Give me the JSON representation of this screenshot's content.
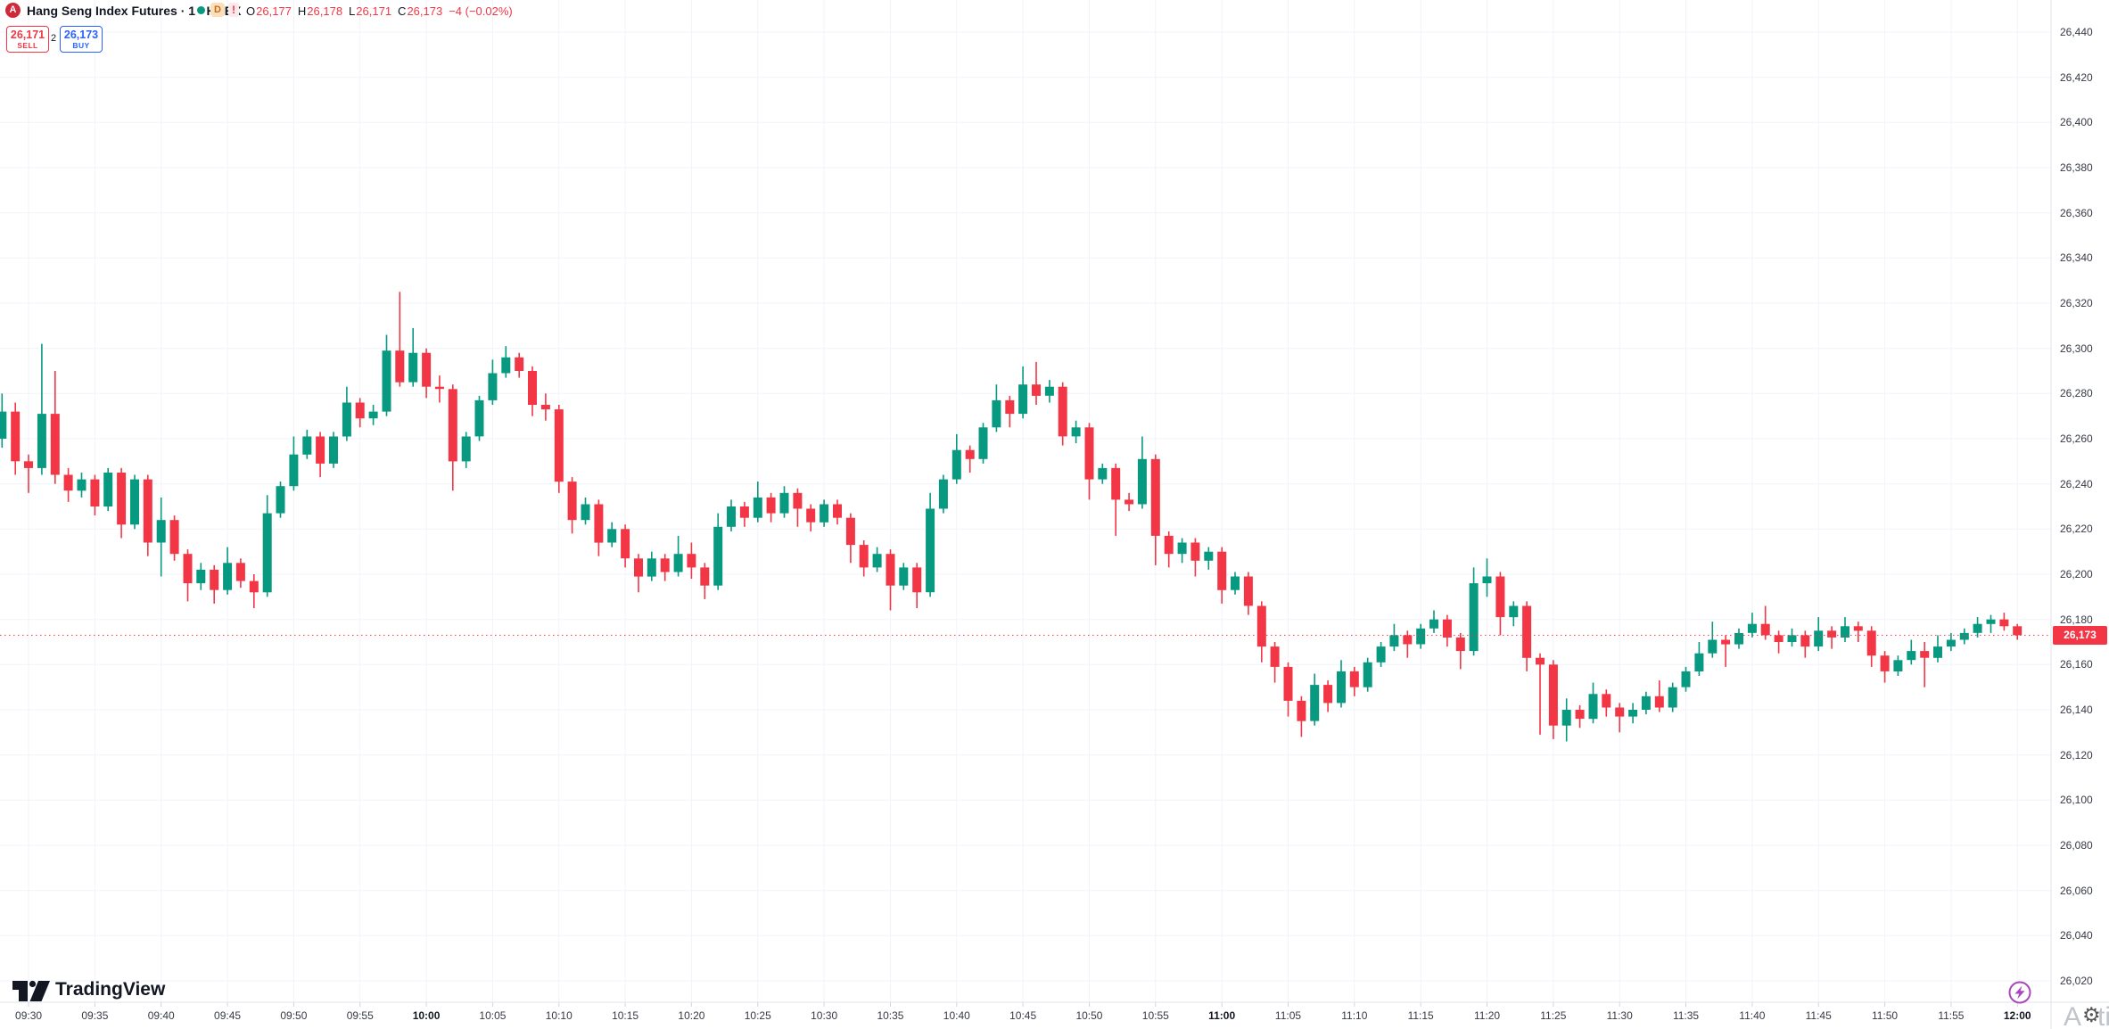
{
  "header": {
    "symbol_title": "Hang Seng Index Futures · 1 · HKEX",
    "logo_letter": "A",
    "badges": {
      "interval": "D",
      "alert": "!"
    },
    "ohlc": {
      "o_label": "O",
      "open": "26,177",
      "h_label": "H",
      "high": "26,178",
      "l_label": "L",
      "low": "26,171",
      "c_label": "C",
      "close": "26,173",
      "change": "−4 (−0.02%)"
    }
  },
  "trade_buttons": {
    "sell_price": "26,171",
    "sell_label": "SELL",
    "spread": "2",
    "buy_price": "26,173",
    "buy_label": "BUY"
  },
  "price_axis": {
    "labels": [
      "26,440",
      "26,420",
      "26,400",
      "26,380",
      "26,360",
      "26,340",
      "26,320",
      "26,300",
      "26,280",
      "26,260",
      "26,240",
      "26,220",
      "26,200",
      "26,180",
      "26,160",
      "26,140",
      "26,120",
      "26,100",
      "26,080",
      "26,060",
      "26,040",
      "26,020"
    ],
    "current_price_label": "26,173"
  },
  "time_axis": {
    "labels": [
      {
        "label": "09:30",
        "bold": false
      },
      {
        "label": "09:35",
        "bold": false
      },
      {
        "label": "09:40",
        "bold": false
      },
      {
        "label": "09:45",
        "bold": false
      },
      {
        "label": "09:50",
        "bold": false
      },
      {
        "label": "09:55",
        "bold": false
      },
      {
        "label": "10:00",
        "bold": true
      },
      {
        "label": "10:05",
        "bold": false
      },
      {
        "label": "10:10",
        "bold": false
      },
      {
        "label": "10:15",
        "bold": false
      },
      {
        "label": "10:20",
        "bold": false
      },
      {
        "label": "10:25",
        "bold": false
      },
      {
        "label": "10:30",
        "bold": false
      },
      {
        "label": "10:35",
        "bold": false
      },
      {
        "label": "10:40",
        "bold": false
      },
      {
        "label": "10:45",
        "bold": false
      },
      {
        "label": "10:50",
        "bold": false
      },
      {
        "label": "10:55",
        "bold": false
      },
      {
        "label": "11:00",
        "bold": true
      },
      {
        "label": "11:05",
        "bold": false
      },
      {
        "label": "11:10",
        "bold": false
      },
      {
        "label": "11:15",
        "bold": false
      },
      {
        "label": "11:20",
        "bold": false
      },
      {
        "label": "11:25",
        "bold": false
      },
      {
        "label": "11:30",
        "bold": false
      },
      {
        "label": "11:35",
        "bold": false
      },
      {
        "label": "11:40",
        "bold": false
      },
      {
        "label": "11:45",
        "bold": false
      },
      {
        "label": "11:50",
        "bold": false
      },
      {
        "label": "11:55",
        "bold": false
      },
      {
        "label": "12:00",
        "bold": true
      }
    ]
  },
  "footer": {
    "brand": "TradingView",
    "watermark_left": "A",
    "watermark_right": "tiva",
    "gear_glyph": "⚙"
  },
  "icons": {
    "symbol_logo": "red-circle-symbol-icon",
    "market_status": "green-dot-icon",
    "interval_badge": "d-badge-icon",
    "alert_badge": "exclamation-icon",
    "brand_mark": "tradingview-logo-icon",
    "realtime": "lightning-icon",
    "settings": "gear-icon"
  },
  "colors": {
    "up": "#089981",
    "down": "#F23645",
    "grid": "#F0F3FA",
    "border": "#E0E3EB",
    "axis_text": "#363A45",
    "header_text": "#131722",
    "buy_blue": "#2962FF",
    "sell_red": "#F23645",
    "price_line": "#F23645",
    "price_badge_bg": "#F23645",
    "lightning_purple": "#AB47BC"
  },
  "chart_data": {
    "type": "candlestick",
    "title": "Hang Seng Index Futures 1-minute",
    "ylim": [
      26020,
      26440
    ],
    "grid_step": 20,
    "time_start": "09:28",
    "time_end": "12:00",
    "interval_minutes": 1,
    "current_price": 26173,
    "up_color": "#089981",
    "down_color": "#F23645",
    "candles": [
      [
        "09:28",
        26260,
        26280,
        26256,
        26272
      ],
      [
        "09:29",
        26272,
        26276,
        26244,
        26250
      ],
      [
        "09:30",
        26250,
        26253,
        26236,
        26247
      ],
      [
        "09:31",
        26247,
        26302,
        26244,
        26271
      ],
      [
        "09:32",
        26271,
        26290,
        26240,
        26244
      ],
      [
        "09:33",
        26244,
        26247,
        26232,
        26237
      ],
      [
        "09:34",
        26237,
        26245,
        26234,
        26242
      ],
      [
        "09:35",
        26242,
        26244,
        26226,
        26230
      ],
      [
        "09:36",
        26230,
        26247,
        26228,
        26245
      ],
      [
        "09:37",
        26245,
        26247,
        26216,
        26222
      ],
      [
        "09:38",
        26222,
        26244,
        26220,
        26242
      ],
      [
        "09:39",
        26242,
        26244,
        26208,
        26214
      ],
      [
        "09:40",
        26214,
        26234,
        26199,
        26224
      ],
      [
        "09:41",
        26224,
        26226,
        26206,
        26209
      ],
      [
        "09:42",
        26209,
        26211,
        26188,
        26196
      ],
      [
        "09:43",
        26196,
        26205,
        26193,
        26202
      ],
      [
        "09:44",
        26202,
        26204,
        26187,
        26193
      ],
      [
        "09:45",
        26193,
        26212,
        26191,
        26205
      ],
      [
        "09:46",
        26205,
        26207,
        26194,
        26197
      ],
      [
        "09:47",
        26197,
        26200,
        26185,
        26192
      ],
      [
        "09:48",
        26192,
        26235,
        26190,
        26227
      ],
      [
        "09:49",
        26227,
        26241,
        26225,
        26239
      ],
      [
        "09:50",
        26239,
        26261,
        26237,
        26253
      ],
      [
        "09:51",
        26253,
        26264,
        26251,
        26261
      ],
      [
        "09:52",
        26261,
        26263,
        26243,
        26249
      ],
      [
        "09:53",
        26249,
        26263,
        26247,
        26261
      ],
      [
        "09:54",
        26261,
        26283,
        26259,
        26276
      ],
      [
        "09:55",
        26276,
        26278,
        26265,
        26269
      ],
      [
        "09:56",
        26269,
        26275,
        26266,
        26272
      ],
      [
        "09:57",
        26272,
        26306,
        26270,
        26299
      ],
      [
        "09:58",
        26299,
        26325,
        26283,
        26285
      ],
      [
        "09:59",
        26285,
        26309,
        26283,
        26298
      ],
      [
        "10:00",
        26298,
        26300,
        26278,
        26283
      ],
      [
        "10:01",
        26283,
        26288,
        26276,
        26282
      ],
      [
        "10:02",
        26282,
        26284,
        26237,
        26250
      ],
      [
        "10:03",
        26250,
        26263,
        26247,
        26261
      ],
      [
        "10:04",
        26261,
        26279,
        26259,
        26277
      ],
      [
        "10:05",
        26277,
        26295,
        26275,
        26289
      ],
      [
        "10:06",
        26289,
        26301,
        26287,
        26296
      ],
      [
        "10:07",
        26296,
        26298,
        26287,
        26290
      ],
      [
        "10:08",
        26290,
        26292,
        26270,
        26275
      ],
      [
        "10:09",
        26275,
        26280,
        26268,
        26273
      ],
      [
        "10:10",
        26273,
        26275,
        26236,
        26241
      ],
      [
        "10:11",
        26241,
        26243,
        26218,
        26224
      ],
      [
        "10:12",
        26224,
        26234,
        26222,
        26231
      ],
      [
        "10:13",
        26231,
        26233,
        26208,
        26214
      ],
      [
        "10:14",
        26214,
        26223,
        26212,
        26220
      ],
      [
        "10:15",
        26220,
        26222,
        26203,
        26207
      ],
      [
        "10:16",
        26207,
        26209,
        26192,
        26199
      ],
      [
        "10:17",
        26199,
        26210,
        26197,
        26207
      ],
      [
        "10:18",
        26207,
        26209,
        26197,
        26201
      ],
      [
        "10:19",
        26201,
        26217,
        26199,
        26209
      ],
      [
        "10:20",
        26209,
        26214,
        26198,
        26203
      ],
      [
        "10:21",
        26203,
        26205,
        26189,
        26195
      ],
      [
        "10:22",
        26195,
        26227,
        26193,
        26221
      ],
      [
        "10:23",
        26221,
        26233,
        26219,
        26230
      ],
      [
        "10:24",
        26230,
        26232,
        26221,
        26225
      ],
      [
        "10:25",
        26225,
        26241,
        26223,
        26234
      ],
      [
        "10:26",
        26234,
        26236,
        26223,
        26227
      ],
      [
        "10:27",
        26227,
        26239,
        26225,
        26236
      ],
      [
        "10:28",
        26236,
        26238,
        26221,
        26229
      ],
      [
        "10:29",
        26229,
        26231,
        26219,
        26223
      ],
      [
        "10:30",
        26223,
        26233,
        26221,
        26231
      ],
      [
        "10:31",
        26231,
        26233,
        26222,
        26225
      ],
      [
        "10:32",
        26225,
        26227,
        26205,
        26213
      ],
      [
        "10:33",
        26213,
        26215,
        26199,
        26203
      ],
      [
        "10:34",
        26203,
        26212,
        26201,
        26209
      ],
      [
        "10:35",
        26209,
        26211,
        26184,
        26195
      ],
      [
        "10:36",
        26195,
        26205,
        26193,
        26203
      ],
      [
        "10:37",
        26203,
        26205,
        26185,
        26192
      ],
      [
        "10:38",
        26192,
        26236,
        26190,
        26229
      ],
      [
        "10:39",
        26229,
        26244,
        26227,
        26242
      ],
      [
        "10:40",
        26242,
        26262,
        26240,
        26255
      ],
      [
        "10:41",
        26255,
        26257,
        26245,
        26251
      ],
      [
        "10:42",
        26251,
        26267,
        26249,
        26265
      ],
      [
        "10:43",
        26265,
        26284,
        26263,
        26277
      ],
      [
        "10:44",
        26277,
        26279,
        26265,
        26271
      ],
      [
        "10:45",
        26271,
        26292,
        26269,
        26284
      ],
      [
        "10:46",
        26284,
        26294,
        26275,
        26279
      ],
      [
        "10:47",
        26279,
        26286,
        26276,
        26283
      ],
      [
        "10:48",
        26283,
        26285,
        26257,
        26261
      ],
      [
        "10:49",
        26261,
        26268,
        26258,
        26265
      ],
      [
        "10:50",
        26265,
        26267,
        26233,
        26242
      ],
      [
        "10:51",
        26242,
        26249,
        26240,
        26247
      ],
      [
        "10:52",
        26247,
        26249,
        26217,
        26233
      ],
      [
        "10:53",
        26233,
        26236,
        26228,
        26231
      ],
      [
        "10:54",
        26231,
        26261,
        26229,
        26251
      ],
      [
        "10:55",
        26251,
        26253,
        26204,
        26217
      ],
      [
        "10:56",
        26217,
        26219,
        26203,
        26209
      ],
      [
        "10:57",
        26209,
        26216,
        26205,
        26214
      ],
      [
        "10:58",
        26214,
        26216,
        26199,
        26206
      ],
      [
        "10:59",
        26206,
        26212,
        26202,
        26210
      ],
      [
        "11:00",
        26210,
        26212,
        26187,
        26193
      ],
      [
        "11:01",
        26193,
        26201,
        26191,
        26199
      ],
      [
        "11:02",
        26199,
        26201,
        26182,
        26186
      ],
      [
        "11:03",
        26186,
        26188,
        26161,
        26168
      ],
      [
        "11:04",
        26168,
        26170,
        26152,
        26159
      ],
      [
        "11:05",
        26159,
        26161,
        26137,
        26144
      ],
      [
        "11:06",
        26144,
        26146,
        26128,
        26135
      ],
      [
        "11:07",
        26135,
        26156,
        26133,
        26151
      ],
      [
        "11:08",
        26151,
        26153,
        26139,
        26143
      ],
      [
        "11:09",
        26143,
        26162,
        26141,
        26157
      ],
      [
        "11:10",
        26157,
        26159,
        26146,
        26150
      ],
      [
        "11:11",
        26150,
        26163,
        26148,
        26161
      ],
      [
        "11:12",
        26161,
        26170,
        26159,
        26168
      ],
      [
        "11:13",
        26168,
        26178,
        26166,
        26173
      ],
      [
        "11:14",
        26173,
        26175,
        26163,
        26169
      ],
      [
        "11:15",
        26169,
        26178,
        26167,
        26176
      ],
      [
        "11:16",
        26176,
        26184,
        26174,
        26180
      ],
      [
        "11:17",
        26180,
        26182,
        26168,
        26172
      ],
      [
        "11:18",
        26172,
        26174,
        26158,
        26166
      ],
      [
        "11:19",
        26166,
        26203,
        26164,
        26196
      ],
      [
        "11:20",
        26196,
        26207,
        26190,
        26199
      ],
      [
        "11:21",
        26199,
        26201,
        26173,
        26181
      ],
      [
        "11:22",
        26181,
        26188,
        26177,
        26186
      ],
      [
        "11:23",
        26186,
        26188,
        26157,
        26163
      ],
      [
        "11:24",
        26163,
        26165,
        26129,
        26160
      ],
      [
        "11:25",
        26160,
        26162,
        26127,
        26133
      ],
      [
        "11:26",
        26133,
        26145,
        26126,
        26140
      ],
      [
        "11:27",
        26140,
        26142,
        26132,
        26136
      ],
      [
        "11:28",
        26136,
        26152,
        26134,
        26147
      ],
      [
        "11:29",
        26147,
        26149,
        26137,
        26141
      ],
      [
        "11:30",
        26141,
        26143,
        26130,
        26137
      ],
      [
        "11:31",
        26137,
        26143,
        26134,
        26140
      ],
      [
        "11:32",
        26140,
        26148,
        26138,
        26146
      ],
      [
        "11:33",
        26146,
        26153,
        26139,
        26141
      ],
      [
        "11:34",
        26141,
        26152,
        26139,
        26150
      ],
      [
        "11:35",
        26150,
        26159,
        26148,
        26157
      ],
      [
        "11:36",
        26157,
        26170,
        26155,
        26165
      ],
      [
        "11:37",
        26165,
        26179,
        26163,
        26171
      ],
      [
        "11:38",
        26171,
        26173,
        26159,
        26169
      ],
      [
        "11:39",
        26169,
        26176,
        26167,
        26174
      ],
      [
        "11:40",
        26174,
        26183,
        26172,
        26178
      ],
      [
        "11:41",
        26178,
        26186,
        26171,
        26173
      ],
      [
        "11:42",
        26173,
        26175,
        26165,
        26170
      ],
      [
        "11:43",
        26170,
        26176,
        26168,
        26173
      ],
      [
        "11:44",
        26173,
        26175,
        26163,
        26168
      ],
      [
        "11:45",
        26168,
        26181,
        26166,
        26175
      ],
      [
        "11:46",
        26175,
        26177,
        26167,
        26172
      ],
      [
        "11:47",
        26172,
        26181,
        26170,
        26177
      ],
      [
        "11:48",
        26177,
        26179,
        26170,
        26175
      ],
      [
        "11:49",
        26175,
        26177,
        26159,
        26164
      ],
      [
        "11:50",
        26164,
        26166,
        26152,
        26157
      ],
      [
        "11:51",
        26157,
        26164,
        26155,
        26162
      ],
      [
        "11:52",
        26162,
        26171,
        26160,
        26166
      ],
      [
        "11:53",
        26166,
        26170,
        26150,
        26163
      ],
      [
        "11:54",
        26163,
        26173,
        26161,
        26168
      ],
      [
        "11:55",
        26168,
        26174,
        26166,
        26171
      ],
      [
        "11:56",
        26171,
        26176,
        26169,
        26174
      ],
      [
        "11:57",
        26174,
        26181,
        26172,
        26178
      ],
      [
        "11:58",
        26178,
        26182,
        26174,
        26180
      ],
      [
        "11:59",
        26180,
        26183,
        26175,
        26177
      ],
      [
        "12:00",
        26177,
        26178,
        26171,
        26173
      ]
    ]
  }
}
